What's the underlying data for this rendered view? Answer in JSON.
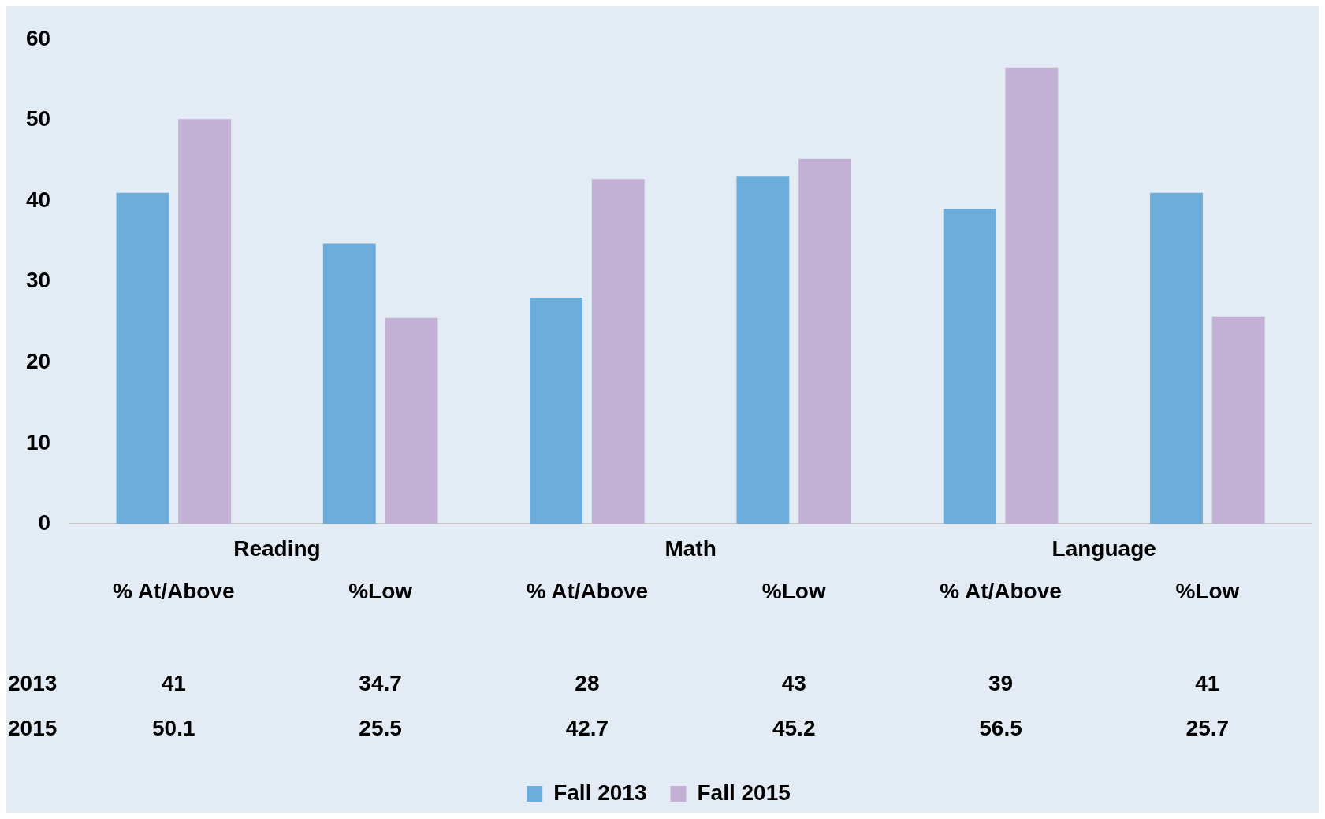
{
  "chart_data": {
    "type": "bar",
    "categories": [
      "% At/Above",
      "%Low",
      "% At/Above",
      "%Low",
      "% At/Above",
      "%Low"
    ],
    "series": [
      {
        "name": "Fall 2013",
        "color": "#6daddc",
        "values": [
          41,
          34.7,
          28,
          43,
          39,
          41
        ]
      },
      {
        "name": "Fall 2015",
        "color": "#c2b1d4",
        "values": [
          50.1,
          25.5,
          42.7,
          45.2,
          56.5,
          25.7
        ]
      }
    ],
    "ylim": [
      0,
      60
    ],
    "yticks": [
      0,
      10,
      20,
      30,
      40,
      50,
      60
    ],
    "grid": false,
    "legend": "bottom",
    "data_labels": true,
    "annotations": [
      "Reading",
      "Math",
      "Language",
      "2013",
      "2015"
    ]
  }
}
